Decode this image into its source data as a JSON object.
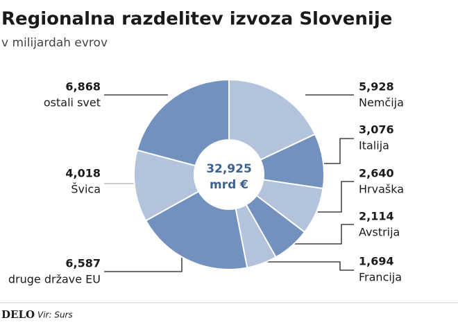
{
  "chart_data": {
    "type": "donut",
    "title": "Regionalna razdelitev izvoza Slovenije",
    "subtitle": "v milijardah evrov",
    "categories": [
      "Nemčija",
      "Italija",
      "Hrvaška",
      "Avstrija",
      "Francija",
      "druge države EU",
      "Švica",
      "ostali svet"
    ],
    "values": [
      5.928,
      3.076,
      2.64,
      2.114,
      1.694,
      6.587,
      4.018,
      6.868
    ],
    "value_labels": [
      "5,928",
      "3,076",
      "2,640",
      "2,114",
      "1,694",
      "6,587",
      "4,018",
      "6,868"
    ],
    "colors": [
      "#b4c3dc",
      "#7291bf",
      "#b4c3dc",
      "#7291bf",
      "#b4c3dc",
      "#7291bf",
      "#b4c3dc",
      "#7291bf"
    ],
    "total": {
      "value": 32.925,
      "label": "32,925"
    },
    "total_unit": "mrd €",
    "logo": "DELO",
    "source": "Vir: Surs"
  }
}
